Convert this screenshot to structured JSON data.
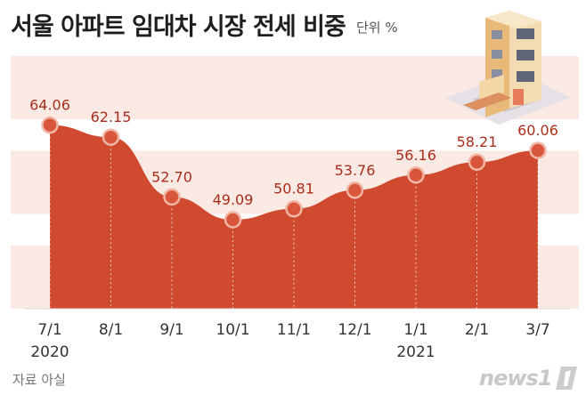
{
  "header": {
    "title": "서울 아파트 임대차 시장 전세 비중",
    "unit": "단위 %"
  },
  "footer": {
    "source": "자료 아실",
    "logo_text": "news1"
  },
  "colors": {
    "area": "#cf4a2e",
    "band": "#fbe9e4",
    "marker": "#d8563b",
    "value_label": "#a92d1b"
  },
  "icons": [
    "building-illustration-icon",
    "news1-logo-icon"
  ],
  "chart_data": {
    "type": "area",
    "x": [
      "7/1",
      "8/1",
      "9/1",
      "10/1",
      "11/1",
      "12/1",
      "1/1",
      "2/1",
      "3/7"
    ],
    "year_labels": [
      "2020",
      "",
      "",
      "",
      "",
      "",
      "2021",
      "",
      ""
    ],
    "series": [
      {
        "values": [
          64.06,
          62.15,
          52.7,
          49.09,
          50.81,
          53.76,
          56.16,
          58.21,
          60.06
        ]
      }
    ],
    "value_labels": [
      "64.06",
      "62.15",
      "52.70",
      "49.09",
      "50.81",
      "53.76",
      "56.16",
      "58.21",
      "60.06"
    ],
    "ylim": [
      35,
      75
    ],
    "grid": false
  }
}
